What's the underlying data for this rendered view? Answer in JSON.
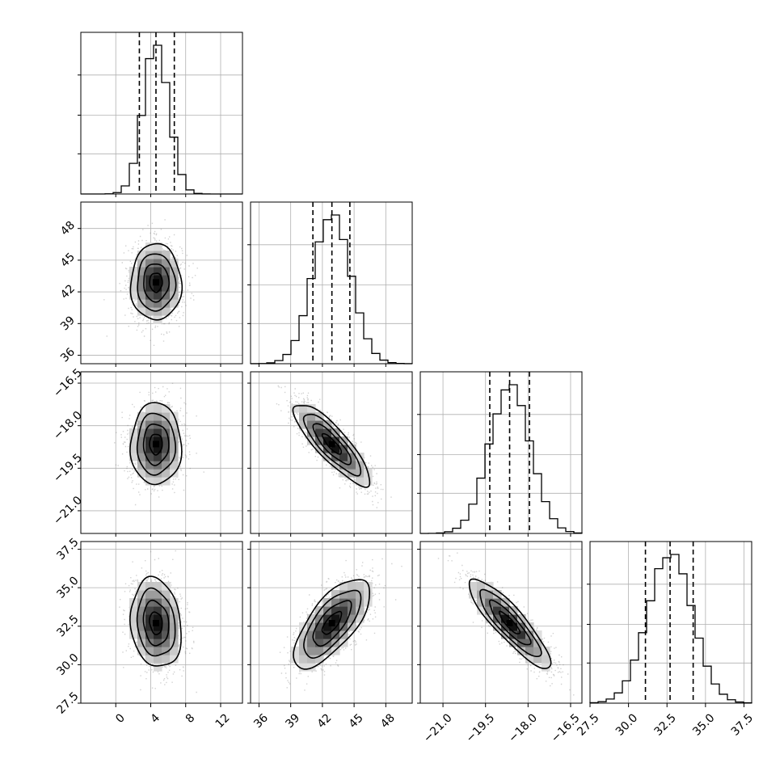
{
  "chart_data": {
    "type": "corner",
    "title": "",
    "parameters": [
      {
        "name": "",
        "range": [
          -4,
          14.5
        ],
        "ticks": [
          0,
          4,
          8,
          12
        ],
        "tick_labels": [
          "0",
          "4",
          "8",
          "12"
        ],
        "quantiles": [
          2.7,
          4.6,
          6.7
        ],
        "mean": 4.6,
        "sd": 1.45
      },
      {
        "name": "",
        "range": [
          35.2,
          50.5
        ],
        "ticks": [
          36,
          39,
          42,
          45,
          48
        ],
        "tick_labels": [
          "36",
          "39",
          "42",
          "45",
          "48"
        ],
        "quantiles": [
          41.1,
          42.9,
          44.6
        ],
        "mean": 42.9,
        "sd": 1.8
      },
      {
        "name": "",
        "range": [
          -21.8,
          -16.1
        ],
        "ticks": [
          -21.0,
          -19.5,
          -18.0,
          -16.5
        ],
        "tick_labels": [
          "−21.0",
          "−19.5",
          "−18.0",
          "−16.5"
        ],
        "quantiles": [
          -19.35,
          -18.65,
          -17.95
        ],
        "mean": -18.65,
        "sd": 0.72
      },
      {
        "name": "",
        "range": [
          27.5,
          38.0
        ],
        "ticks": [
          27.5,
          30.0,
          32.5,
          35.0,
          37.5
        ],
        "tick_labels": [
          "27.5",
          "30.0",
          "32.5",
          "35.0",
          "37.5"
        ],
        "quantiles": [
          31.1,
          32.7,
          34.2
        ],
        "mean": 32.7,
        "sd": 1.45
      }
    ],
    "correlations": [
      {
        "pair": [
          1,
          0
        ],
        "rho": 0.0
      },
      {
        "pair": [
          2,
          0
        ],
        "rho": 0.0
      },
      {
        "pair": [
          2,
          1
        ],
        "rho": -0.85
      },
      {
        "pair": [
          3,
          0
        ],
        "rho": -0.15
      },
      {
        "pair": [
          3,
          1
        ],
        "rho": 0.7
      },
      {
        "pair": [
          3,
          2
        ],
        "rho": -0.88
      }
    ],
    "histogram_style": "step",
    "quantile_lines": "dashed",
    "contour_levels": [
      0.118,
      0.393,
      0.675,
      0.865
    ],
    "grid": true,
    "colors": {
      "line": "#000000",
      "points": "#7a7a7a",
      "grid": "#b0b0b0"
    }
  }
}
